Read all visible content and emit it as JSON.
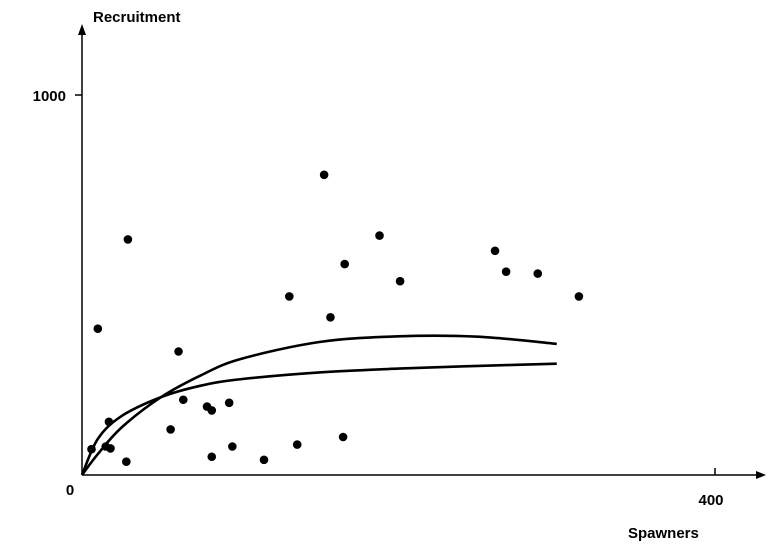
{
  "chart_data": {
    "type": "scatter",
    "title": "",
    "xlabel": "Spawners",
    "ylabel": "Recruitment",
    "xlim": [
      0,
      430
    ],
    "ylim": [
      0,
      1080
    ],
    "x_ticks": [
      0,
      400
    ],
    "x_tick_labels": [
      "0",
      "400"
    ],
    "y_ticks": [
      1000
    ],
    "y_tick_labels": [
      "1000"
    ],
    "grid": false,
    "series": [
      {
        "points": [
          [
            6,
            68
          ],
          [
            10,
            385
          ],
          [
            15,
            75
          ],
          [
            17,
            140
          ],
          [
            18,
            70
          ],
          [
            28,
            35
          ],
          [
            29,
            620
          ],
          [
            56,
            120
          ],
          [
            61,
            325
          ],
          [
            64,
            198
          ],
          [
            79,
            180
          ],
          [
            82,
            170
          ],
          [
            82,
            48
          ],
          [
            93,
            190
          ],
          [
            95,
            75
          ],
          [
            115,
            40
          ],
          [
            131,
            470
          ],
          [
            136,
            80
          ],
          [
            153,
            790
          ],
          [
            157,
            415
          ],
          [
            165,
            100
          ],
          [
            166,
            555
          ],
          [
            188,
            630
          ],
          [
            201,
            510
          ],
          [
            261,
            590
          ],
          [
            268,
            535
          ],
          [
            288,
            530
          ],
          [
            314,
            470
          ]
        ]
      }
    ],
    "curves": [
      {
        "x": [
          0,
          10,
          25,
          50,
          75,
          100,
          150,
          200,
          250,
          300
        ],
        "y": [
          0,
          95,
          155,
          205,
          235,
          252,
          270,
          280,
          287,
          293
        ]
      },
      {
        "x": [
          0,
          10,
          25,
          50,
          75,
          100,
          150,
          200,
          250,
          300
        ],
        "y": [
          0,
          55,
          125,
          205,
          262,
          305,
          350,
          365,
          364,
          345
        ]
      }
    ]
  }
}
